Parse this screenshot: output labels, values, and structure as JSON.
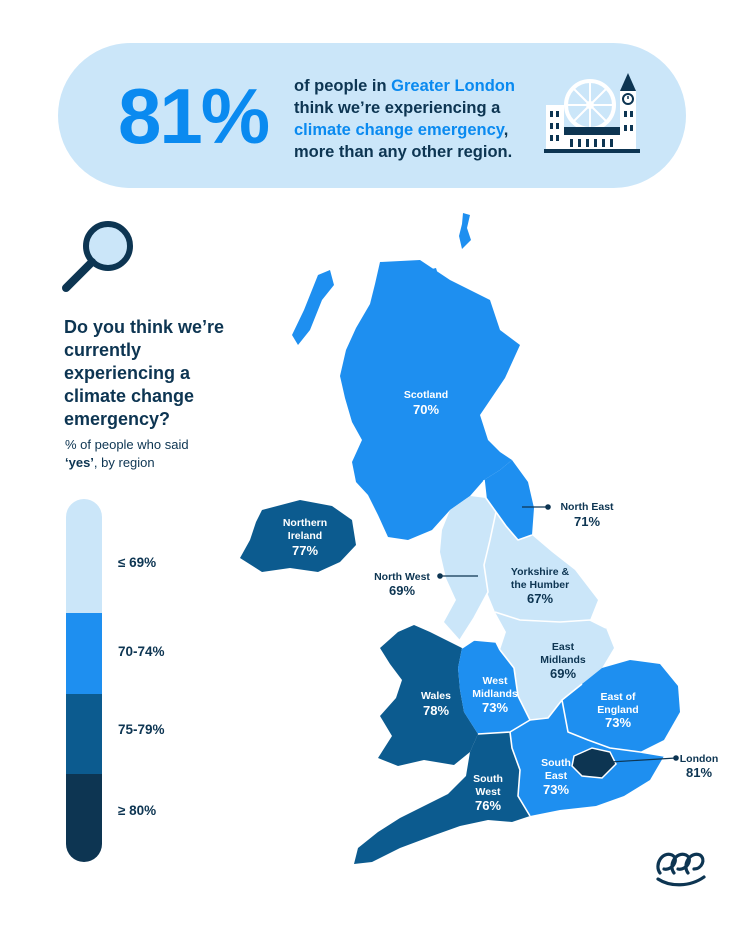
{
  "banner": {
    "stat": "81%",
    "line1_pre": "of people in ",
    "line1_highlight": "Greater London",
    "line2": "think we’re experiencing a",
    "line3_highlight": "climate change emergency",
    "line3_post": ",",
    "line4": "more than any other region."
  },
  "question": "Do you think we’re currently experiencing a climate change emergency?",
  "subtitle_pre": "% of people who said",
  "subtitle_bold": "‘yes’",
  "subtitle_post": ", by region",
  "legend": [
    {
      "label": "≤ 69%",
      "color": "#cbe6f9"
    },
    {
      "label": "70-74%",
      "color": "#1e8ff0"
    },
    {
      "label": "75-79%",
      "color": "#0c5b8f"
    },
    {
      "label": "≥ 80%",
      "color": "#0d3552"
    }
  ],
  "regions": [
    {
      "name": "Scotland",
      "value": "70%"
    },
    {
      "name": "North East",
      "value": "71%"
    },
    {
      "name_line1": "Northern",
      "name_line2": "Ireland",
      "value": "77%"
    },
    {
      "name": "North West",
      "value": "69%"
    },
    {
      "name_line1": "Yorkshire &",
      "name_line2": "the Humber",
      "value": "67%"
    },
    {
      "name_line1": "East",
      "name_line2": "Midlands",
      "value": "69%"
    },
    {
      "name_line1": "West",
      "name_line2": "Midlands",
      "value": "73%"
    },
    {
      "name": "Wales",
      "value": "78%"
    },
    {
      "name_line1": "East of",
      "name_line2": "England",
      "value": "73%"
    },
    {
      "name_line1": "South",
      "name_line2": "East",
      "value": "73%"
    },
    {
      "name": "London",
      "value": "81%"
    },
    {
      "name_line1": "South",
      "name_line2": "West",
      "value": "76%"
    }
  ]
}
